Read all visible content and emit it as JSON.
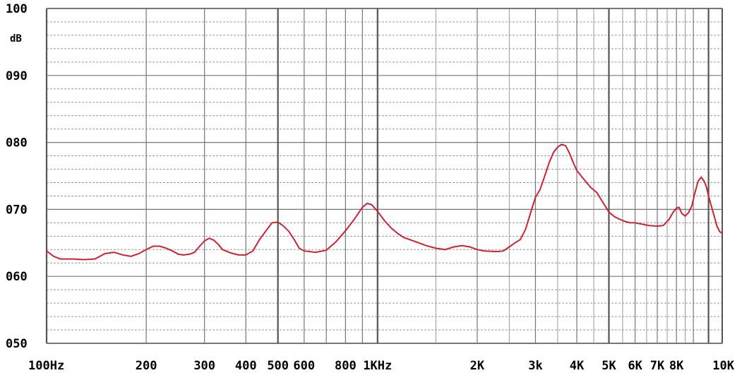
{
  "chart_data": {
    "type": "line",
    "title": "",
    "xlabel": "",
    "ylabel": "dB",
    "x_scale": "log",
    "xlim": [
      100,
      10000
    ],
    "ylim": [
      50,
      100
    ],
    "grid": true,
    "colors": {
      "line": "#cc2233",
      "grid": "#777777",
      "grid_bold": "#555555",
      "minor": "#999999"
    },
    "y_ticks": [
      {
        "value": 100,
        "label": "100"
      },
      {
        "value": 90,
        "label": "090"
      },
      {
        "value": 80,
        "label": "080"
      },
      {
        "value": 70,
        "label": "070"
      },
      {
        "value": 60,
        "label": "060"
      },
      {
        "value": 50,
        "label": "050"
      }
    ],
    "x_ticks": [
      {
        "value": 100,
        "label": "100Hz"
      },
      {
        "value": 200,
        "label": "200"
      },
      {
        "value": 300,
        "label": "300"
      },
      {
        "value": 400,
        "label": "400"
      },
      {
        "value": 500,
        "label": "500"
      },
      {
        "value": 600,
        "label": "600"
      },
      {
        "value": 800,
        "label": "800"
      },
      {
        "value": 1000,
        "label": "1KHz"
      },
      {
        "value": 2000,
        "label": "2K"
      },
      {
        "value": 3000,
        "label": "3k"
      },
      {
        "value": 4000,
        "label": "4K"
      },
      {
        "value": 5000,
        "label": "5K"
      },
      {
        "value": 6000,
        "label": "6K"
      },
      {
        "value": 7000,
        "label": "7K"
      },
      {
        "value": 8000,
        "label": "8K"
      },
      {
        "value": 10000,
        "label": "10K"
      }
    ],
    "series": [
      {
        "values": [
          [
            100,
            63.8
          ],
          [
            105,
            63.0
          ],
          [
            110,
            62.6
          ],
          [
            120,
            62.6
          ],
          [
            130,
            62.5
          ],
          [
            140,
            62.6
          ],
          [
            150,
            63.4
          ],
          [
            160,
            63.6
          ],
          [
            170,
            63.2
          ],
          [
            180,
            63.0
          ],
          [
            190,
            63.4
          ],
          [
            200,
            64.0
          ],
          [
            210,
            64.5
          ],
          [
            220,
            64.5
          ],
          [
            230,
            64.2
          ],
          [
            240,
            63.8
          ],
          [
            250,
            63.3
          ],
          [
            260,
            63.2
          ],
          [
            270,
            63.3
          ],
          [
            280,
            63.6
          ],
          [
            290,
            64.5
          ],
          [
            300,
            65.3
          ],
          [
            310,
            65.7
          ],
          [
            320,
            65.4
          ],
          [
            330,
            64.8
          ],
          [
            340,
            64.0
          ],
          [
            360,
            63.5
          ],
          [
            380,
            63.2
          ],
          [
            400,
            63.2
          ],
          [
            420,
            63.8
          ],
          [
            440,
            65.5
          ],
          [
            460,
            66.8
          ],
          [
            480,
            68.0
          ],
          [
            500,
            68.1
          ],
          [
            520,
            67.5
          ],
          [
            540,
            66.7
          ],
          [
            560,
            65.5
          ],
          [
            580,
            64.2
          ],
          [
            600,
            63.8
          ],
          [
            650,
            63.6
          ],
          [
            700,
            63.9
          ],
          [
            750,
            65.2
          ],
          [
            800,
            66.8
          ],
          [
            850,
            68.5
          ],
          [
            900,
            70.3
          ],
          [
            930,
            70.9
          ],
          [
            960,
            70.7
          ],
          [
            1000,
            69.7
          ],
          [
            1050,
            68.3
          ],
          [
            1100,
            67.2
          ],
          [
            1150,
            66.4
          ],
          [
            1200,
            65.8
          ],
          [
            1300,
            65.2
          ],
          [
            1400,
            64.6
          ],
          [
            1500,
            64.2
          ],
          [
            1600,
            64.0
          ],
          [
            1700,
            64.4
          ],
          [
            1800,
            64.6
          ],
          [
            1900,
            64.4
          ],
          [
            2000,
            64.0
          ],
          [
            2100,
            63.8
          ],
          [
            2300,
            63.7
          ],
          [
            2400,
            63.8
          ],
          [
            2500,
            64.4
          ],
          [
            2600,
            65.0
          ],
          [
            2700,
            65.5
          ],
          [
            2800,
            67.0
          ],
          [
            2900,
            69.5
          ],
          [
            3000,
            71.8
          ],
          [
            3100,
            73.0
          ],
          [
            3200,
            75.0
          ],
          [
            3300,
            77.0
          ],
          [
            3400,
            78.5
          ],
          [
            3500,
            79.3
          ],
          [
            3600,
            79.7
          ],
          [
            3700,
            79.5
          ],
          [
            3800,
            78.4
          ],
          [
            3900,
            77.0
          ],
          [
            4000,
            75.8
          ],
          [
            4200,
            74.5
          ],
          [
            4400,
            73.3
          ],
          [
            4600,
            72.5
          ],
          [
            4800,
            71.0
          ],
          [
            5000,
            69.6
          ],
          [
            5200,
            68.9
          ],
          [
            5400,
            68.5
          ],
          [
            5600,
            68.2
          ],
          [
            5800,
            68.0
          ],
          [
            6000,
            68.0
          ],
          [
            6300,
            67.8
          ],
          [
            6600,
            67.6
          ],
          [
            7000,
            67.5
          ],
          [
            7300,
            67.6
          ],
          [
            7600,
            68.5
          ],
          [
            7800,
            69.5
          ],
          [
            8000,
            70.2
          ],
          [
            8150,
            70.3
          ],
          [
            8300,
            69.4
          ],
          [
            8500,
            69.0
          ],
          [
            8700,
            69.5
          ],
          [
            8900,
            70.5
          ],
          [
            9100,
            72.5
          ],
          [
            9300,
            74.2
          ],
          [
            9500,
            74.8
          ],
          [
            9700,
            74.2
          ],
          [
            9850,
            73.4
          ],
          [
            10000,
            72.0
          ],
          [
            10200,
            70.5
          ],
          [
            10400,
            69.0
          ],
          [
            10600,
            67.5
          ],
          [
            10800,
            66.7
          ],
          [
            11000,
            66.4
          ]
        ]
      }
    ]
  }
}
